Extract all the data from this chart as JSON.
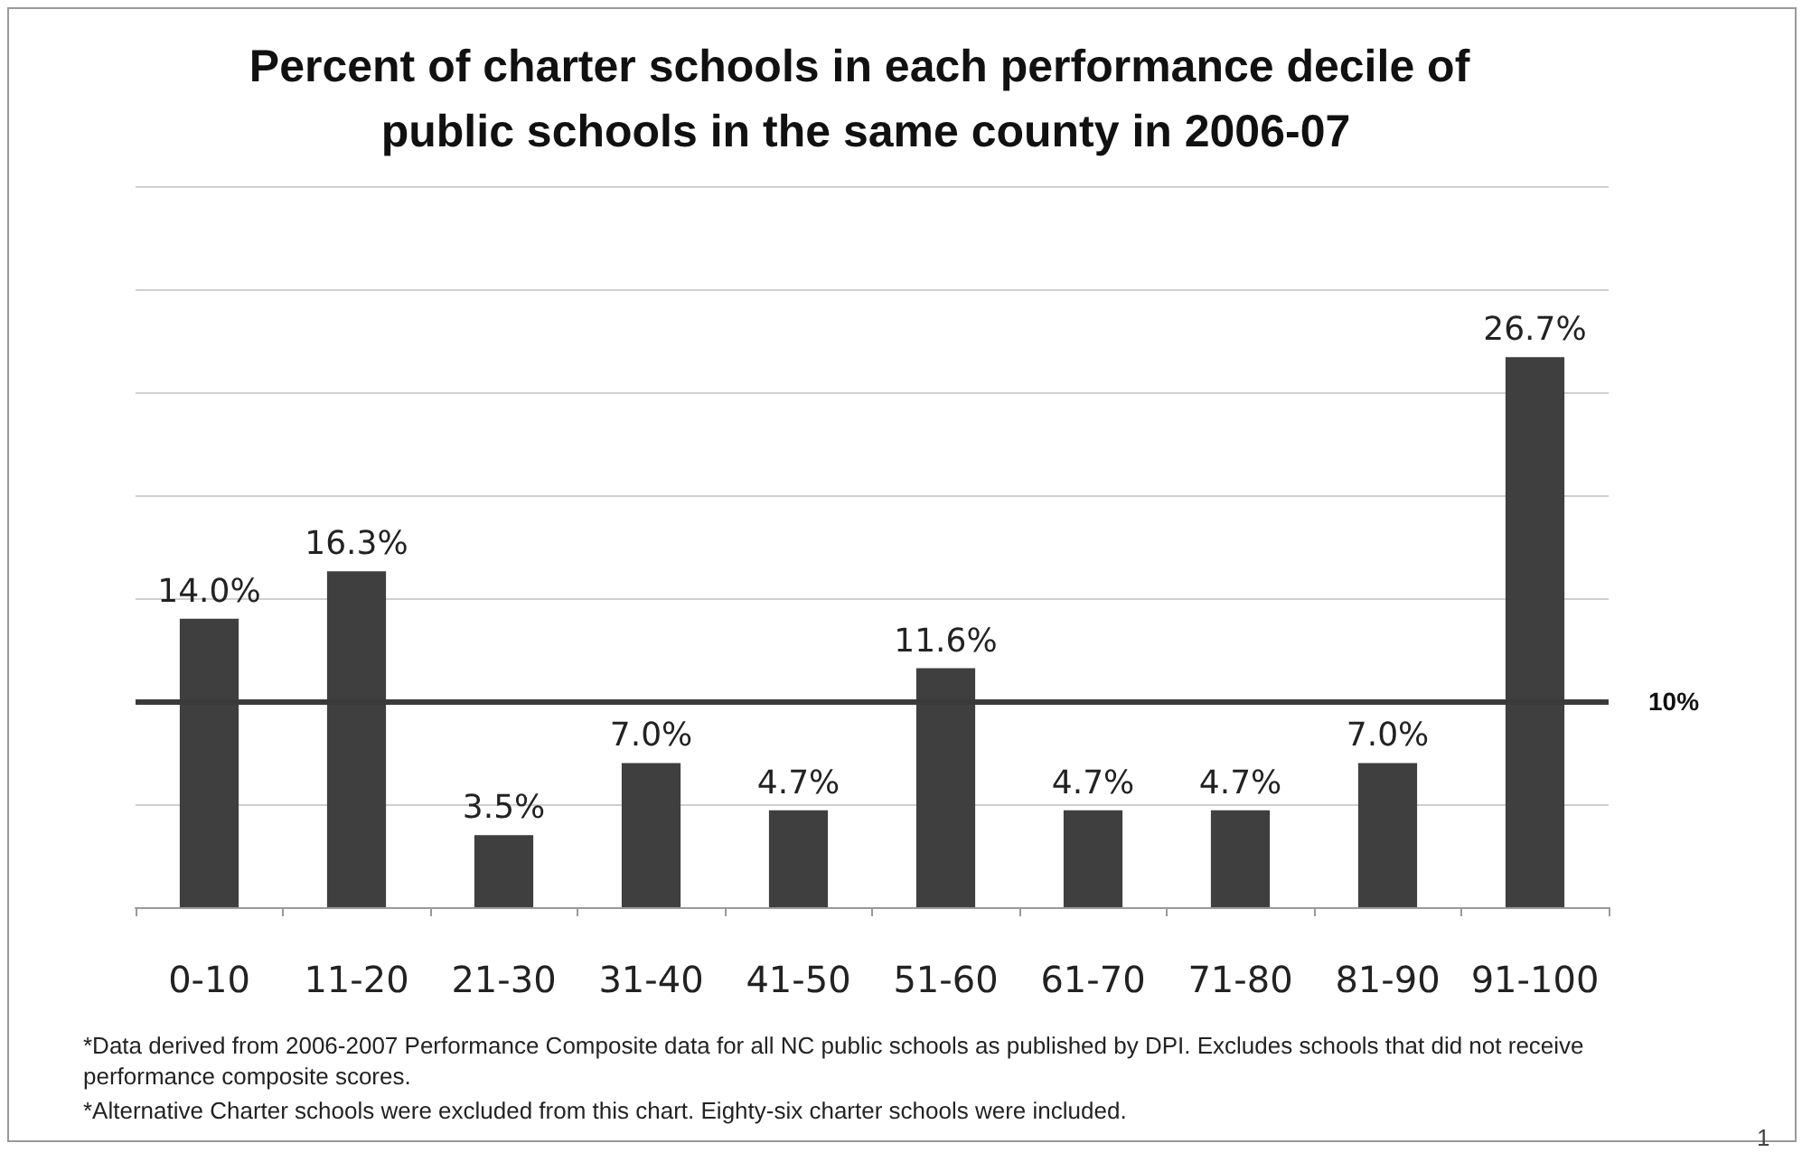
{
  "chart_data": {
    "type": "bar",
    "title": "Percent of charter schools in each performance decile of public schools in the same county in 2006-07",
    "categories": [
      "0-10",
      "11-20",
      "21-30",
      "31-40",
      "41-50",
      "51-60",
      "61-70",
      "71-80",
      "81-90",
      "91-100"
    ],
    "values": [
      14.0,
      16.3,
      3.5,
      7.0,
      4.7,
      11.6,
      4.7,
      4.7,
      7.0,
      26.7
    ],
    "value_labels": [
      "14.0%",
      "16.3%",
      "3.5%",
      "7.0%",
      "4.7%",
      "11.6%",
      "4.7%",
      "4.7%",
      "7.0%",
      "26.7%"
    ],
    "color": "#3f3f3f",
    "ylim": [
      0,
      35
    ],
    "yticks": [
      {
        "value": 0,
        "label": null
      },
      {
        "value": 5,
        "label": null
      },
      {
        "value": 10,
        "label": null
      },
      {
        "value": 15,
        "label": null
      },
      {
        "value": 20,
        "label": null
      },
      {
        "value": 25,
        "label": null
      },
      {
        "value": 30,
        "label": null
      },
      {
        "value": 35,
        "label": null
      }
    ],
    "tick_labels": "x",
    "grid": "y",
    "ref_lines": [
      {
        "axis": "y",
        "value": 10,
        "label": "10%",
        "color": "#3a3a3a"
      }
    ],
    "annotations": [
      "*Data derived from 2006-2007 Performance Composite data for all NC public schools as published by DPI. Excludes schools that did not receive performance composite scores.",
      "*Alternative Charter schools were excluded from this chart.  Eighty-six charter schools were included.",
      "1"
    ]
  }
}
